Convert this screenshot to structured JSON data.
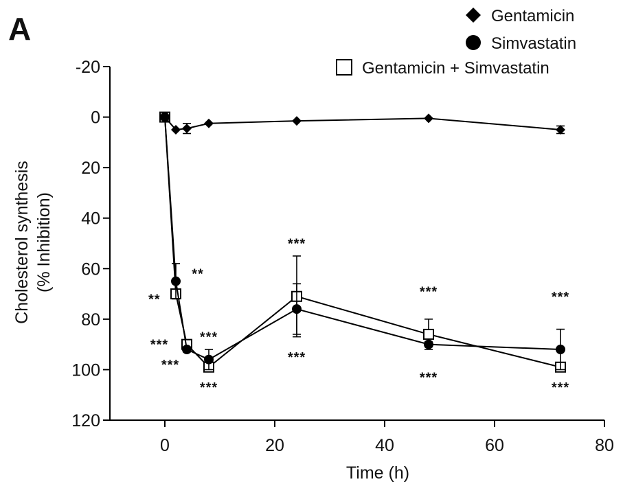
{
  "panel_label": "A",
  "chart_data": {
    "type": "line",
    "title": "",
    "xlabel": "Time (h)",
    "ylabel_lines": [
      "Cholesterol synthesis",
      "(% Inhibition)"
    ],
    "xlim": [
      -10,
      80
    ],
    "ylim": [
      -20,
      120
    ],
    "y_inverted": true,
    "x_ticks": [
      0,
      20,
      40,
      60,
      80
    ],
    "y_ticks": [
      -20,
      0,
      20,
      40,
      60,
      80,
      100,
      120
    ],
    "grid": false,
    "legend_position": "top-right",
    "series": [
      {
        "name": "Gentamicin",
        "marker": "diamond",
        "x": [
          0,
          2,
          4,
          8,
          24,
          48,
          72
        ],
        "y": [
          0,
          5,
          4.5,
          2.5,
          1.5,
          0.5,
          5
        ],
        "err": [
          0,
          0,
          2,
          0,
          0,
          0,
          1.5
        ]
      },
      {
        "name": "Simvastatin",
        "marker": "circle",
        "x": [
          0,
          2,
          4,
          8,
          24,
          48,
          72
        ],
        "y": [
          0,
          65,
          92,
          96,
          76,
          90,
          92
        ],
        "err": [
          0,
          7,
          1,
          4,
          10,
          1,
          8
        ]
      },
      {
        "name": "Gentamicin + Simvastatin",
        "marker": "open-square",
        "x": [
          0,
          2,
          4,
          8,
          24,
          48,
          72
        ],
        "y": [
          0,
          70,
          90,
          99,
          71,
          86,
          99
        ],
        "err": [
          0,
          0,
          0,
          0,
          16,
          6,
          0
        ]
      }
    ],
    "annotations": [
      {
        "text": "**",
        "x": -1.9,
        "y": 72
      },
      {
        "text": "***",
        "x": -1.0,
        "y": 90
      },
      {
        "text": "***",
        "x": 1.0,
        "y": 98
      },
      {
        "text": "**",
        "x": 6.0,
        "y": 62
      },
      {
        "text": "***",
        "x": 8.0,
        "y": 87
      },
      {
        "text": "***",
        "x": 8.0,
        "y": 107
      },
      {
        "text": "***",
        "x": 24.0,
        "y": 50
      },
      {
        "text": "***",
        "x": 24.0,
        "y": 95
      },
      {
        "text": "***",
        "x": 48.0,
        "y": 69
      },
      {
        "text": "***",
        "x": 48.0,
        "y": 103
      },
      {
        "text": "***",
        "x": 72.0,
        "y": 71
      },
      {
        "text": "***",
        "x": 72.0,
        "y": 107
      }
    ]
  }
}
